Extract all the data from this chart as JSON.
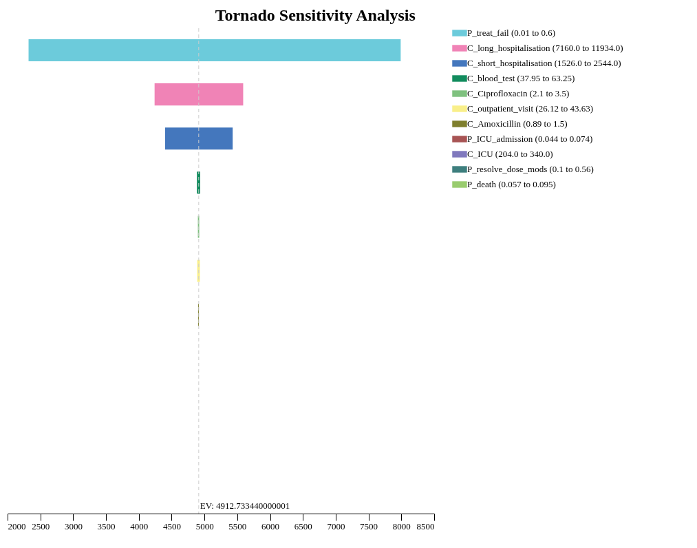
{
  "chart_data": {
    "type": "bar",
    "orientation": "horizontal",
    "title": "Tornado Sensitivity Analysis",
    "categories": [
      null,
      null,
      null,
      null,
      null,
      null,
      null,
      null,
      null,
      null,
      null
    ],
    "series": [
      {
        "name": "P_treat_fail (0.01 to 0.6)",
        "color": "#6ccbdb",
        "base": [
          2320,
          null,
          null,
          null,
          null,
          null,
          null,
          null,
          null,
          null,
          null
        ],
        "values": [
          5670,
          null,
          null,
          null,
          null,
          null,
          null,
          null,
          null,
          null,
          null
        ]
      },
      {
        "name": "C_long_hospitalisation (7160.0 to 11934.0)",
        "color": "#f083b6",
        "base": [
          null,
          4240,
          null,
          null,
          null,
          null,
          null,
          null,
          null,
          null,
          null
        ],
        "values": [
          null,
          1350,
          null,
          null,
          null,
          null,
          null,
          null,
          null,
          null,
          null
        ]
      },
      {
        "name": "C_short_hospitalisation (1526.0 to 2544.0)",
        "color": "#4477bd",
        "base": [
          null,
          null,
          4400,
          null,
          null,
          null,
          null,
          null,
          null,
          null,
          null
        ],
        "values": [
          null,
          null,
          1030,
          null,
          null,
          null,
          null,
          null,
          null,
          null,
          null
        ]
      },
      {
        "name": "C_blood_test (37.95 to 63.25)",
        "color": "#128c5e",
        "base": [
          null,
          null,
          null,
          4885,
          null,
          null,
          null,
          null,
          null,
          null,
          null
        ],
        "values": [
          null,
          null,
          null,
          50,
          null,
          null,
          null,
          null,
          null,
          null,
          null
        ]
      },
      {
        "name": "C_Ciprofloxacin (2.1 to 3.5)",
        "color": "#7fc17f",
        "base": [
          null,
          null,
          null,
          null,
          4900,
          null,
          null,
          null,
          null,
          null,
          null
        ],
        "values": [
          null,
          null,
          null,
          null,
          20,
          null,
          null,
          null,
          null,
          null,
          null
        ]
      },
      {
        "name": "C_outpatient_visit (26.12 to 43.63)",
        "color": "#f9ef8a",
        "base": [
          null,
          null,
          null,
          null,
          null,
          4890,
          null,
          null,
          null,
          null,
          null
        ],
        "values": [
          null,
          null,
          null,
          null,
          null,
          40,
          null,
          null,
          null,
          null,
          null
        ]
      },
      {
        "name": "C_Amoxicillin (0.89 to 1.5)",
        "color": "#7f7f2e",
        "base": [
          null,
          null,
          null,
          null,
          null,
          null,
          4905,
          null,
          null,
          null,
          null
        ],
        "values": [
          null,
          null,
          null,
          null,
          null,
          null,
          10,
          null,
          null,
          null,
          null
        ]
      },
      {
        "name": "P_ICU_admission (0.044 to 0.074)",
        "color": "#a85454",
        "base": [
          null,
          null,
          null,
          null,
          null,
          null,
          null,
          null,
          null,
          null,
          null
        ],
        "values": [
          null,
          null,
          null,
          null,
          null,
          null,
          null,
          null,
          null,
          null,
          null
        ]
      },
      {
        "name": "C_ICU (204.0 to 340.0)",
        "color": "#8079bd",
        "base": [
          null,
          null,
          null,
          null,
          null,
          null,
          null,
          null,
          null,
          null,
          null
        ],
        "values": [
          null,
          null,
          null,
          null,
          null,
          null,
          null,
          null,
          null,
          null,
          null
        ]
      },
      {
        "name": "P_resolve_dose_mods (0.1 to 0.56)",
        "color": "#3e7f7e",
        "base": [
          null,
          null,
          null,
          null,
          null,
          null,
          null,
          null,
          null,
          null,
          null
        ],
        "values": [
          null,
          null,
          null,
          null,
          null,
          null,
          null,
          null,
          null,
          null,
          null
        ]
      },
      {
        "name": "P_death (0.057 to 0.095)",
        "color": "#99cc6e",
        "base": [
          null,
          null,
          null,
          null,
          null,
          null,
          null,
          null,
          null,
          null,
          null
        ],
        "values": [
          null,
          null,
          null,
          null,
          null,
          null,
          null,
          null,
          null,
          null,
          null
        ]
      }
    ],
    "xlim": [
      2000,
      8500
    ],
    "xticks": [
      2000,
      2500,
      3000,
      3500,
      4000,
      4500,
      5000,
      5500,
      6000,
      6500,
      7000,
      7500,
      8000,
      8500
    ],
    "ref_lines": [
      {
        "axis": "x",
        "value": 4912.733440000001,
        "label": "EV: 4912.733440000001",
        "color": "#cccccc",
        "line_style": "dashed"
      }
    ],
    "grid": false,
    "legend": "top right",
    "tick_labels": "x"
  }
}
